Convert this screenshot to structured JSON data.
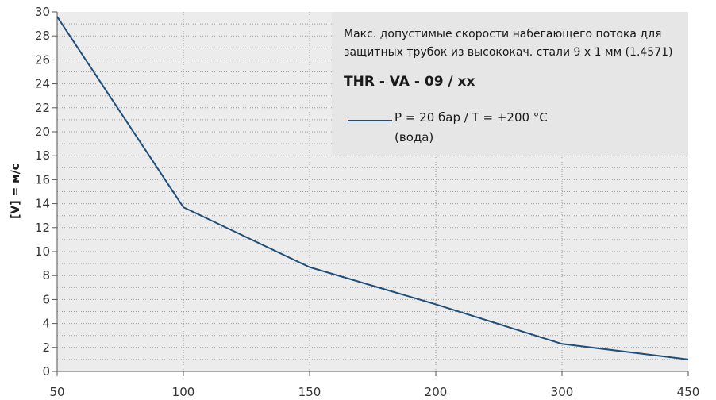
{
  "chart_data": {
    "type": "line",
    "x": [
      "50",
      "100",
      "150",
      "200",
      "300",
      "450"
    ],
    "series": [
      {
        "name": "P = 20 бар  /  T = +200 °C",
        "values": [
          29.6,
          13.7,
          8.7,
          5.6,
          2.3,
          1.0
        ]
      }
    ],
    "xlabel": "",
    "ylabel": "[V] = м/с",
    "ylim": [
      0,
      30
    ],
    "yticks": [
      "0",
      "2",
      "4",
      "6",
      "8",
      "10",
      "12",
      "14",
      "16",
      "18",
      "20",
      "22",
      "24",
      "26",
      "28",
      "30"
    ],
    "grid": true,
    "legend_position": "top-right",
    "line_color": "#1f4e79",
    "grid_color": "#9a9a9a",
    "plot_background": "#ececec"
  },
  "annotation": {
    "line1": "Макс. допустимые скорости набегающего потока для",
    "line2": "защитных трубок из высококач. стали 9 x 1 мм (1.4571)",
    "model": "THR - VA - 09 / xx",
    "legend_line1": "P = 20 бар  /  T = +200 °C",
    "legend_line2": "(вода)"
  }
}
